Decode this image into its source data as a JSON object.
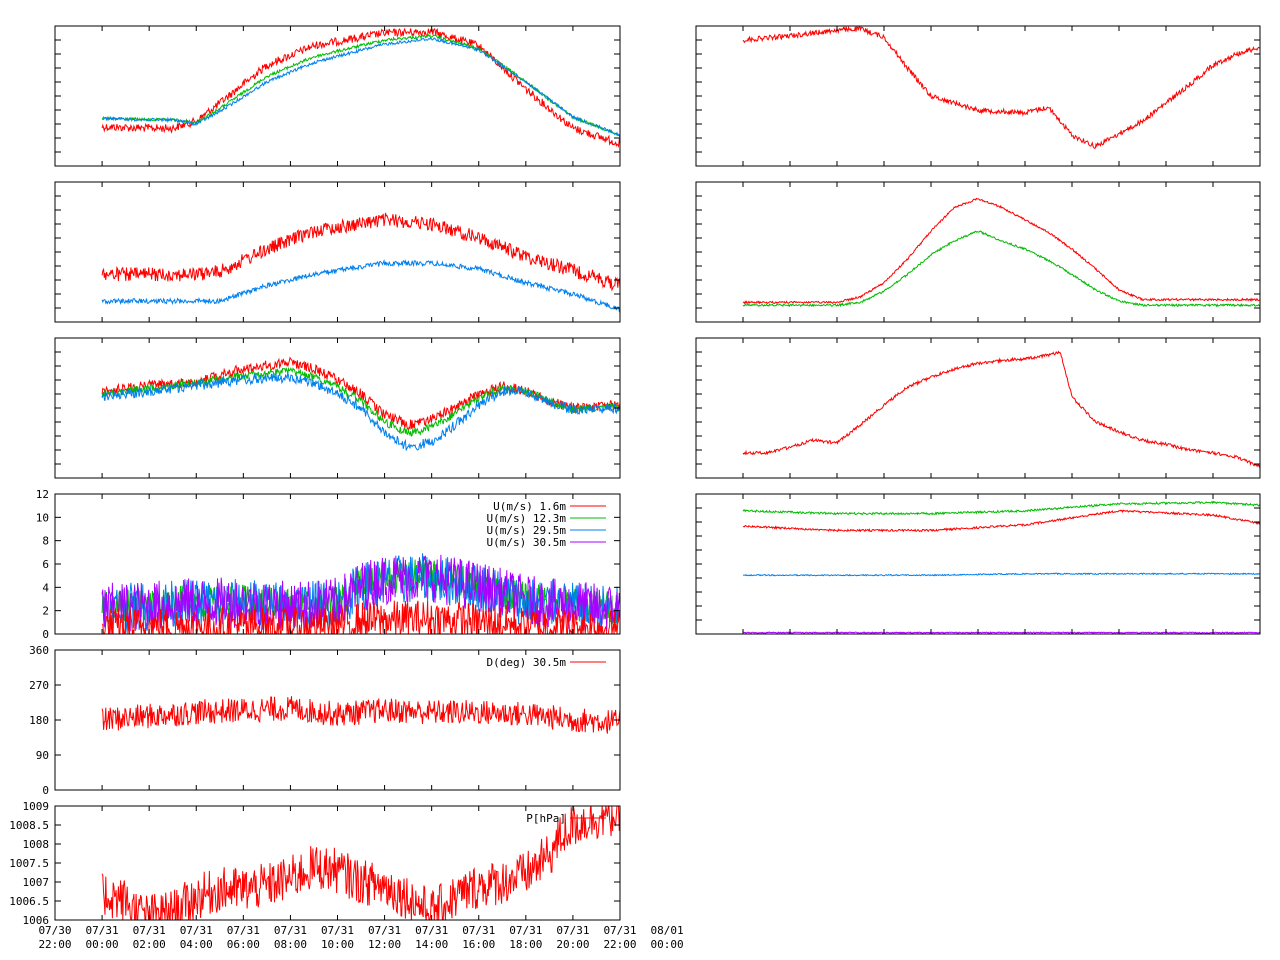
{
  "figure": {
    "time_axis": {
      "tick_labels": [
        [
          "07/30",
          "22:00"
        ],
        [
          "07/31",
          "00:00"
        ],
        [
          "07/31",
          "02:00"
        ],
        [
          "07/31",
          "04:00"
        ],
        [
          "07/31",
          "06:00"
        ],
        [
          "07/31",
          "08:00"
        ],
        [
          "07/31",
          "10:00"
        ],
        [
          "07/31",
          "12:00"
        ],
        [
          "07/31",
          "14:00"
        ],
        [
          "07/31",
          "16:00"
        ],
        [
          "07/31",
          "18:00"
        ],
        [
          "07/31",
          "20:00"
        ],
        [
          "07/31",
          "22:00"
        ],
        [
          "08/01",
          "00:00"
        ]
      ],
      "range_hours": [
        -2,
        22
      ],
      "data_start_hour": 0
    },
    "colors": {
      "red": "#ff0000",
      "green": "#00bb00",
      "blue": "#0080ee",
      "purple": "#aa00ff"
    }
  },
  "chart_data": [
    {
      "id": "left-1",
      "type": "line",
      "series": [
        {
          "color": "red",
          "x": [
            0,
            2,
            3,
            4,
            5,
            7,
            9,
            12,
            14,
            16,
            18,
            20,
            22
          ],
          "y": [
            0.72,
            0.73,
            0.73,
            0.68,
            0.55,
            0.28,
            0.14,
            0.05,
            0.04,
            0.14,
            0.45,
            0.73,
            0.84
          ]
        },
        {
          "color": "green",
          "x": [
            0,
            2,
            3,
            4,
            5,
            7,
            9,
            12,
            14,
            16,
            18,
            20,
            22
          ],
          "y": [
            0.66,
            0.67,
            0.67,
            0.69,
            0.59,
            0.36,
            0.22,
            0.1,
            0.07,
            0.16,
            0.4,
            0.65,
            0.78
          ]
        },
        {
          "color": "blue",
          "x": [
            0,
            2,
            3,
            4,
            5,
            7,
            9,
            12,
            14,
            16,
            18,
            20,
            22
          ],
          "y": [
            0.66,
            0.67,
            0.67,
            0.7,
            0.61,
            0.4,
            0.26,
            0.13,
            0.09,
            0.17,
            0.4,
            0.65,
            0.78
          ]
        }
      ]
    },
    {
      "id": "right-1",
      "type": "line",
      "series": [
        {
          "color": "red",
          "x": [
            0,
            2,
            4,
            5,
            6,
            7,
            8,
            10,
            12,
            13,
            14,
            15,
            17,
            19,
            20,
            21,
            22
          ],
          "y": [
            0.1,
            0.07,
            0.03,
            0.02,
            0.08,
            0.3,
            0.5,
            0.6,
            0.62,
            0.58,
            0.78,
            0.86,
            0.68,
            0.42,
            0.28,
            0.2,
            0.15
          ]
        }
      ]
    },
    {
      "id": "left-2",
      "type": "line",
      "series": [
        {
          "color": "red",
          "x": [
            0,
            2,
            4,
            5,
            7,
            9,
            12,
            14,
            16,
            18,
            20,
            22
          ],
          "y": [
            0.66,
            0.66,
            0.66,
            0.64,
            0.48,
            0.35,
            0.27,
            0.3,
            0.4,
            0.53,
            0.63,
            0.74
          ]
        },
        {
          "color": "blue",
          "x": [
            0,
            2,
            4,
            5,
            7,
            9,
            12,
            14,
            16,
            18,
            20,
            22
          ],
          "y": [
            0.85,
            0.85,
            0.85,
            0.85,
            0.74,
            0.66,
            0.58,
            0.58,
            0.62,
            0.72,
            0.8,
            0.91
          ]
        }
      ]
    },
    {
      "id": "right-2",
      "type": "line",
      "series": [
        {
          "color": "red",
          "x": [
            0,
            2,
            4,
            5,
            6,
            7,
            8,
            9,
            10,
            11,
            12,
            13,
            14,
            15,
            16,
            17,
            18,
            19,
            20,
            22
          ],
          "y": [
            0.86,
            0.86,
            0.86,
            0.82,
            0.72,
            0.55,
            0.35,
            0.18,
            0.12,
            0.18,
            0.27,
            0.36,
            0.48,
            0.62,
            0.77,
            0.84,
            0.84,
            0.84,
            0.84,
            0.84
          ]
        },
        {
          "color": "green",
          "x": [
            0,
            2,
            4,
            5,
            6,
            7,
            8,
            9,
            10,
            11,
            12,
            13,
            14,
            15,
            16,
            17,
            18,
            19,
            20,
            22
          ],
          "y": [
            0.88,
            0.88,
            0.88,
            0.86,
            0.78,
            0.66,
            0.52,
            0.42,
            0.35,
            0.42,
            0.48,
            0.56,
            0.66,
            0.77,
            0.85,
            0.88,
            0.88,
            0.88,
            0.88,
            0.88
          ]
        }
      ]
    },
    {
      "id": "left-3",
      "type": "line",
      "series": [
        {
          "color": "red",
          "x": [
            0,
            2,
            4,
            6,
            8,
            9,
            10,
            11,
            12,
            13,
            14,
            15,
            16,
            17,
            18,
            19,
            20,
            22
          ],
          "y": [
            0.38,
            0.34,
            0.31,
            0.22,
            0.17,
            0.22,
            0.3,
            0.4,
            0.55,
            0.62,
            0.58,
            0.5,
            0.4,
            0.34,
            0.38,
            0.45,
            0.5,
            0.48
          ]
        },
        {
          "color": "green",
          "x": [
            0,
            2,
            4,
            6,
            8,
            9,
            10,
            11,
            12,
            13,
            14,
            15,
            16,
            17,
            18,
            19,
            20,
            22
          ],
          "y": [
            0.4,
            0.36,
            0.32,
            0.27,
            0.24,
            0.28,
            0.35,
            0.45,
            0.6,
            0.68,
            0.64,
            0.54,
            0.43,
            0.36,
            0.38,
            0.45,
            0.51,
            0.49
          ]
        },
        {
          "color": "blue",
          "x": [
            0,
            2,
            4,
            6,
            8,
            9,
            10,
            11,
            12,
            13,
            14,
            15,
            16,
            17,
            18,
            19,
            20,
            22
          ],
          "y": [
            0.42,
            0.38,
            0.34,
            0.3,
            0.28,
            0.32,
            0.4,
            0.5,
            0.68,
            0.78,
            0.74,
            0.62,
            0.48,
            0.38,
            0.38,
            0.46,
            0.51,
            0.5
          ]
        }
      ]
    },
    {
      "id": "right-3",
      "type": "line",
      "series": [
        {
          "color": "red",
          "x": [
            0,
            1,
            2,
            3,
            4,
            5,
            6,
            7,
            8,
            9,
            10,
            11,
            12,
            13,
            13.5,
            14,
            15,
            16,
            17,
            18,
            19,
            20,
            21,
            22
          ],
          "y": [
            0.82,
            0.82,
            0.78,
            0.73,
            0.75,
            0.62,
            0.48,
            0.35,
            0.28,
            0.22,
            0.18,
            0.16,
            0.15,
            0.12,
            0.1,
            0.42,
            0.6,
            0.67,
            0.73,
            0.76,
            0.8,
            0.82,
            0.85,
            0.92
          ]
        }
      ]
    },
    {
      "id": "left-4",
      "type": "line",
      "ylim": [
        0,
        12
      ],
      "yticks": [
        "0",
        "2",
        "4",
        "6",
        "8",
        "10",
        "12"
      ],
      "legend": [
        {
          "label": "U(m/s)  1.6m",
          "color": "red"
        },
        {
          "label": "U(m/s) 12.3m",
          "color": "green"
        },
        {
          "label": "U(m/s) 29.5m",
          "color": "blue"
        },
        {
          "label": "U(m/s) 30.5m",
          "color": "purple"
        }
      ],
      "series": [
        {
          "color": "green",
          "x": [
            0,
            4,
            6,
            8,
            10,
            11,
            12,
            14,
            16,
            18,
            20,
            22
          ],
          "y": [
            2.3,
            2.8,
            2.8,
            2.5,
            2.8,
            4.2,
            4.8,
            5.0,
            4.2,
            3.0,
            2.5,
            2.2
          ]
        },
        {
          "color": "blue",
          "x": [
            0,
            4,
            6,
            8,
            10,
            11,
            12,
            14,
            16,
            18,
            20,
            22
          ],
          "y": [
            2.1,
            2.6,
            2.6,
            2.3,
            2.6,
            4.0,
            4.6,
            4.8,
            4.0,
            2.8,
            2.3,
            2.0
          ]
        },
        {
          "color": "purple",
          "x": [
            0,
            4,
            6,
            8,
            10,
            11,
            12,
            14,
            16,
            18,
            20,
            22
          ],
          "y": [
            2.2,
            2.7,
            2.7,
            2.4,
            2.7,
            4.1,
            4.7,
            4.9,
            4.1,
            2.9,
            2.4,
            2.1
          ]
        },
        {
          "color": "red",
          "x": [
            0,
            4,
            6,
            8,
            10,
            11,
            12,
            14,
            16,
            18,
            20,
            22
          ],
          "y": [
            0.6,
            0.7,
            0.7,
            0.6,
            0.8,
            1.1,
            1.2,
            1.3,
            1.0,
            0.7,
            0.6,
            0.5
          ]
        }
      ]
    },
    {
      "id": "right-4",
      "type": "line",
      "series": [
        {
          "color": "green",
          "x": [
            0,
            4,
            8,
            12,
            16,
            20,
            22
          ],
          "y": [
            0.12,
            0.14,
            0.14,
            0.12,
            0.07,
            0.06,
            0.08
          ]
        },
        {
          "color": "red",
          "x": [
            0,
            4,
            8,
            12,
            16,
            20,
            22
          ],
          "y": [
            0.23,
            0.26,
            0.26,
            0.22,
            0.12,
            0.15,
            0.21
          ]
        },
        {
          "color": "blue",
          "x": [
            0,
            4,
            8,
            12,
            16,
            20,
            22
          ],
          "y": [
            0.58,
            0.58,
            0.58,
            0.57,
            0.57,
            0.57,
            0.57
          ]
        },
        {
          "color": "purple",
          "x": [
            0,
            4,
            8,
            12,
            16,
            20,
            22
          ],
          "y": [
            0.99,
            0.99,
            0.99,
            0.99,
            0.99,
            0.99,
            0.99
          ]
        }
      ]
    },
    {
      "id": "left-5",
      "type": "line",
      "ylim": [
        0,
        360
      ],
      "yticks": [
        "0",
        "90",
        "180",
        "270",
        "360"
      ],
      "legend": [
        {
          "label": "D(deg)  30.5m",
          "color": "red"
        }
      ],
      "series": [
        {
          "color": "red",
          "x": [
            0,
            2,
            4,
            6,
            8,
            10,
            12,
            14,
            16,
            18,
            20,
            22
          ],
          "y": [
            180,
            190,
            200,
            205,
            210,
            195,
            205,
            200,
            200,
            195,
            180,
            175
          ]
        }
      ]
    },
    {
      "id": "left-6",
      "type": "line",
      "ylim": [
        1006,
        1009
      ],
      "yticks": [
        "1006",
        "1006.5",
        "1007",
        "1007.5",
        "1008",
        "1008.5",
        "1009"
      ],
      "legend": [
        {
          "label": "P[hPa]",
          "color": "red"
        }
      ],
      "series": [
        {
          "color": "red",
          "x": [
            0,
            1,
            1.5,
            2,
            3,
            4,
            5,
            6,
            7,
            8,
            9,
            10,
            11,
            12,
            13,
            14,
            15,
            16,
            17,
            18,
            19,
            19.5,
            20,
            21,
            22
          ],
          "y": [
            1006.7,
            1006.5,
            1006.2,
            1006.1,
            1006.2,
            1006.6,
            1006.8,
            1006.8,
            1006.9,
            1007.1,
            1007.4,
            1007.3,
            1007.0,
            1006.9,
            1006.6,
            1006.2,
            1006.6,
            1006.9,
            1007.0,
            1007.2,
            1007.7,
            1008.2,
            1008.5,
            1008.7,
            1008.8
          ]
        }
      ]
    }
  ]
}
